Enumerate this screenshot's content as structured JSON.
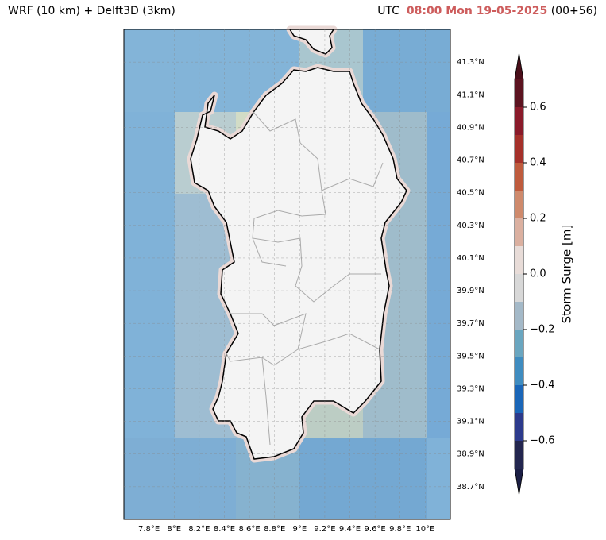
{
  "header": {
    "title": "WRF (10 km) + Delft3D (3km)",
    "utc": "UTC",
    "time": "08:00 Mon 19-05-2025",
    "lead": "(00+56)"
  },
  "chart_data": {
    "type": "map",
    "xlim": [
      7.6,
      10.2
    ],
    "ylim": [
      38.5,
      41.5
    ],
    "grid": true,
    "xticks": [
      {
        "value": 7.8,
        "label": "7.8°E"
      },
      {
        "value": 8,
        "label": "8°E"
      },
      {
        "value": 8.2,
        "label": "8.2°E"
      },
      {
        "value": 8.4,
        "label": "8.4°E"
      },
      {
        "value": 8.6,
        "label": "8.6°E"
      },
      {
        "value": 8.8,
        "label": "8.8°E"
      },
      {
        "value": 9,
        "label": "9°E"
      },
      {
        "value": 9.2,
        "label": "9.2°E"
      },
      {
        "value": 9.4,
        "label": "9.4°E"
      },
      {
        "value": 9.6,
        "label": "9.6°E"
      },
      {
        "value": 9.8,
        "label": "9.8°E"
      },
      {
        "value": 10,
        "label": "10°E"
      }
    ],
    "yticks": [
      {
        "value": 38.7,
        "label": "38.7°N"
      },
      {
        "value": 38.9,
        "label": "38.9°N"
      },
      {
        "value": 39.1,
        "label": "39.1°N"
      },
      {
        "value": 39.3,
        "label": "39.3°N"
      },
      {
        "value": 39.5,
        "label": "39.5°N"
      },
      {
        "value": 39.7,
        "label": "39.7°N"
      },
      {
        "value": 39.9,
        "label": "39.9°N"
      },
      {
        "value": 40.1,
        "label": "40.1°N"
      },
      {
        "value": 40.3,
        "label": "40.3°N"
      },
      {
        "value": 40.5,
        "label": "40.5°N"
      },
      {
        "value": 40.7,
        "label": "40.7°N"
      },
      {
        "value": 40.9,
        "label": "40.9°N"
      },
      {
        "value": 41.1,
        "label": "41.1°N"
      },
      {
        "value": 41.3,
        "label": "41.3°N"
      }
    ],
    "colorbar": {
      "label": "Storm Surge [m]",
      "lim": [
        -0.7,
        0.7
      ],
      "levels": [
        -0.7,
        -0.6,
        -0.5,
        -0.4,
        -0.3,
        -0.2,
        -0.1,
        0,
        0.1,
        0.2,
        0.3,
        0.4,
        0.5,
        0.6,
        0.7
      ],
      "colors": [
        "#23264f",
        "#2c3a8c",
        "#1a66b8",
        "#3f8cc0",
        "#6aa6c0",
        "#a4b9c8",
        "#d8d8d8",
        "#e8dcd8",
        "#dbb0a0",
        "#cf8a6c",
        "#bf5b3d",
        "#a5302a",
        "#8a1a2a",
        "#5c1320"
      ],
      "extend_colors": [
        "#1c1f45",
        "#4a0f1a"
      ],
      "ticks": [
        {
          "value": -0.6,
          "label": "−0.6"
        },
        {
          "value": -0.4,
          "label": "−0.4"
        },
        {
          "value": -0.2,
          "label": "−0.2"
        },
        {
          "value": 0,
          "label": "0.0"
        },
        {
          "value": 0.2,
          "label": "0.2"
        },
        {
          "value": 0.4,
          "label": "0.4"
        },
        {
          "value": 0.6,
          "label": "0.6"
        }
      ]
    }
  }
}
